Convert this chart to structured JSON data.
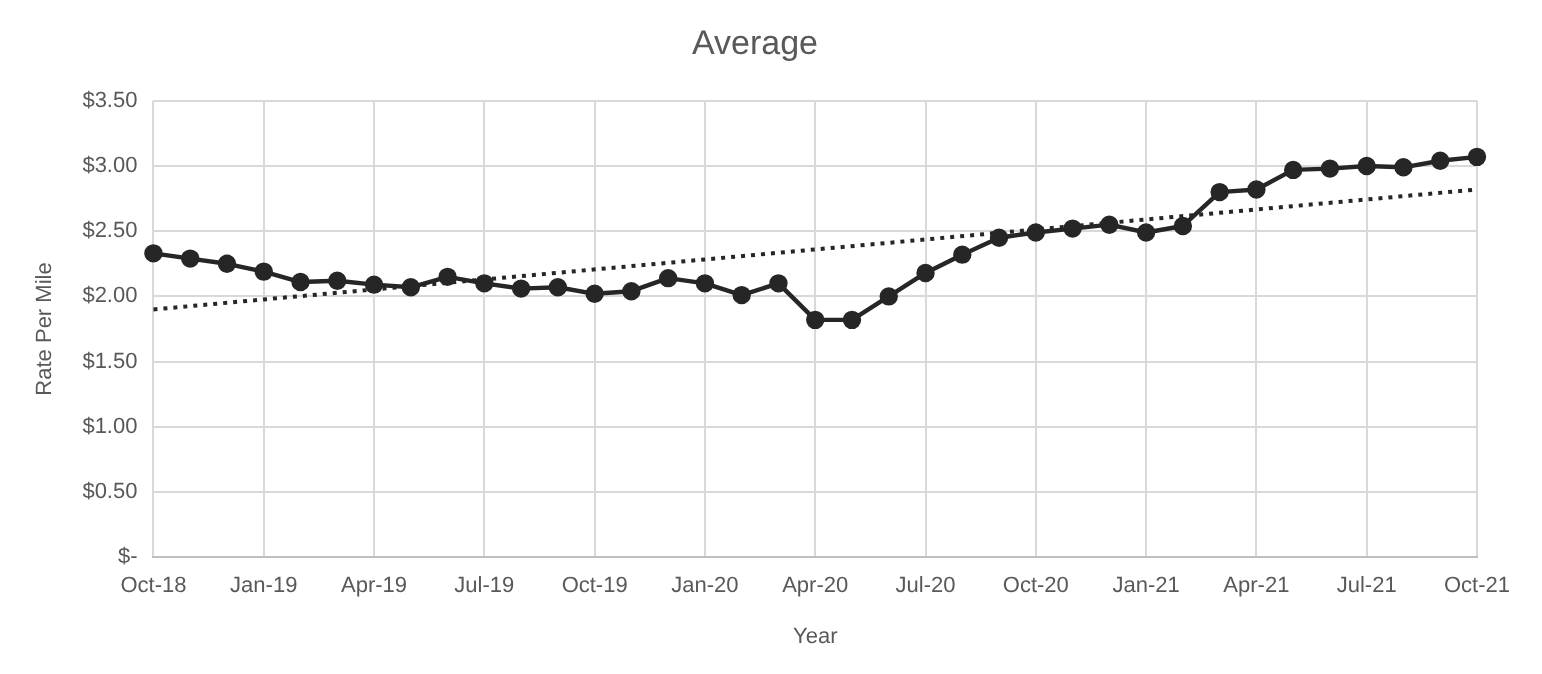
{
  "chart_data": {
    "type": "line",
    "title": "Average",
    "xlabel": "Year",
    "ylabel": "Rate Per Mile",
    "categories": [
      "Oct-18",
      null,
      null,
      "Jan-19",
      null,
      null,
      "Apr-19",
      null,
      null,
      "Jul-19",
      null,
      null,
      "Oct-19",
      null,
      null,
      "Jan-20",
      null,
      null,
      "Apr-20",
      null,
      null,
      "Jul-20",
      null,
      null,
      "Oct-20",
      null,
      null,
      "Jan-21",
      null,
      null,
      "Apr-21",
      null,
      null,
      "Jul-21",
      null,
      null,
      "Oct-21"
    ],
    "series": [
      {
        "color": "#262626",
        "marker": "circle",
        "line_style": "solid",
        "values": [
          2.33,
          2.29,
          2.25,
          2.19,
          2.11,
          2.12,
          2.09,
          2.07,
          2.15,
          2.1,
          2.06,
          2.07,
          2.02,
          2.04,
          2.14,
          2.1,
          2.01,
          2.1,
          1.82,
          1.82,
          2.0,
          2.18,
          2.32,
          2.45,
          2.49,
          2.52,
          2.55,
          2.49,
          2.54,
          2.8,
          2.82,
          2.97,
          2.98,
          3.0,
          2.99,
          3.04,
          3.07
        ]
      },
      {
        "type": "line",
        "color": "#262626",
        "marker": "none",
        "line_style": "dotted",
        "x": [
          "Oct-18",
          "Oct-21"
        ],
        "values": [
          1.9,
          2.82
        ]
      }
    ],
    "ylim": [
      0,
      3.5
    ],
    "yticks": [
      {
        "value": 0,
        "label": "$-"
      },
      {
        "value": 0.5,
        "label": "$0.50"
      },
      {
        "value": 1,
        "label": "$1.00"
      },
      {
        "value": 1.5,
        "label": "$1.50"
      },
      {
        "value": 2,
        "label": "$2.00"
      },
      {
        "value": 2.5,
        "label": "$2.50"
      },
      {
        "value": 3,
        "label": "$3.00"
      },
      {
        "value": 3.5,
        "label": "$3.50"
      }
    ],
    "grid": true,
    "legend": false
  }
}
